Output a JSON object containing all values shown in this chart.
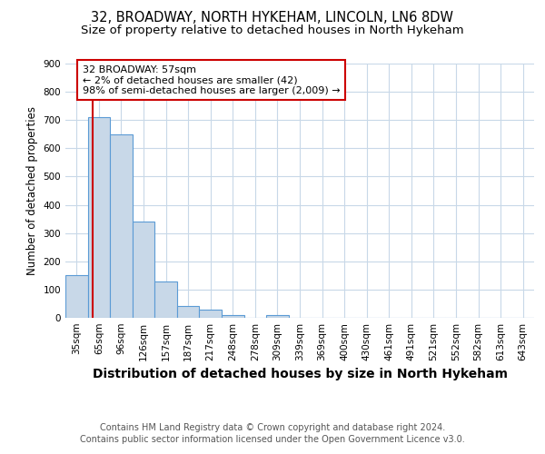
{
  "title1": "32, BROADWAY, NORTH HYKEHAM, LINCOLN, LN6 8DW",
  "title2": "Size of property relative to detached houses in North Hykeham",
  "xlabel": "Distribution of detached houses by size in North Hykeham",
  "ylabel": "Number of detached properties",
  "categories": [
    "35sqm",
    "65sqm",
    "96sqm",
    "126sqm",
    "157sqm",
    "187sqm",
    "217sqm",
    "248sqm",
    "278sqm",
    "309sqm",
    "339sqm",
    "369sqm",
    "400sqm",
    "430sqm",
    "461sqm",
    "491sqm",
    "521sqm",
    "552sqm",
    "582sqm",
    "613sqm",
    "643sqm"
  ],
  "values": [
    150,
    710,
    650,
    340,
    130,
    42,
    30,
    10,
    0,
    10,
    0,
    0,
    0,
    0,
    0,
    0,
    0,
    0,
    0,
    0,
    0
  ],
  "bar_color": "#c8d8e8",
  "bar_edge_color": "#5b9bd5",
  "annotation_line1": "32 BROADWAY: 57sqm",
  "annotation_line2": "← 2% of detached houses are smaller (42)",
  "annotation_line3": "98% of semi-detached houses are larger (2,009) →",
  "annotation_box_color": "#ffffff",
  "annotation_border_color": "#cc0000",
  "vline_color": "#cc0000",
  "vline_x": 0.72,
  "ylim": [
    0,
    900
  ],
  "yticks": [
    0,
    100,
    200,
    300,
    400,
    500,
    600,
    700,
    800,
    900
  ],
  "footer1": "Contains HM Land Registry data © Crown copyright and database right 2024.",
  "footer2": "Contains public sector information licensed under the Open Government Licence v3.0.",
  "bg_color": "#ffffff",
  "grid_color": "#c8d8e8",
  "title1_fontsize": 10.5,
  "title2_fontsize": 9.5,
  "xlabel_fontsize": 10,
  "ylabel_fontsize": 8.5,
  "tick_fontsize": 7.5,
  "annotation_fontsize": 8,
  "footer_fontsize": 7
}
